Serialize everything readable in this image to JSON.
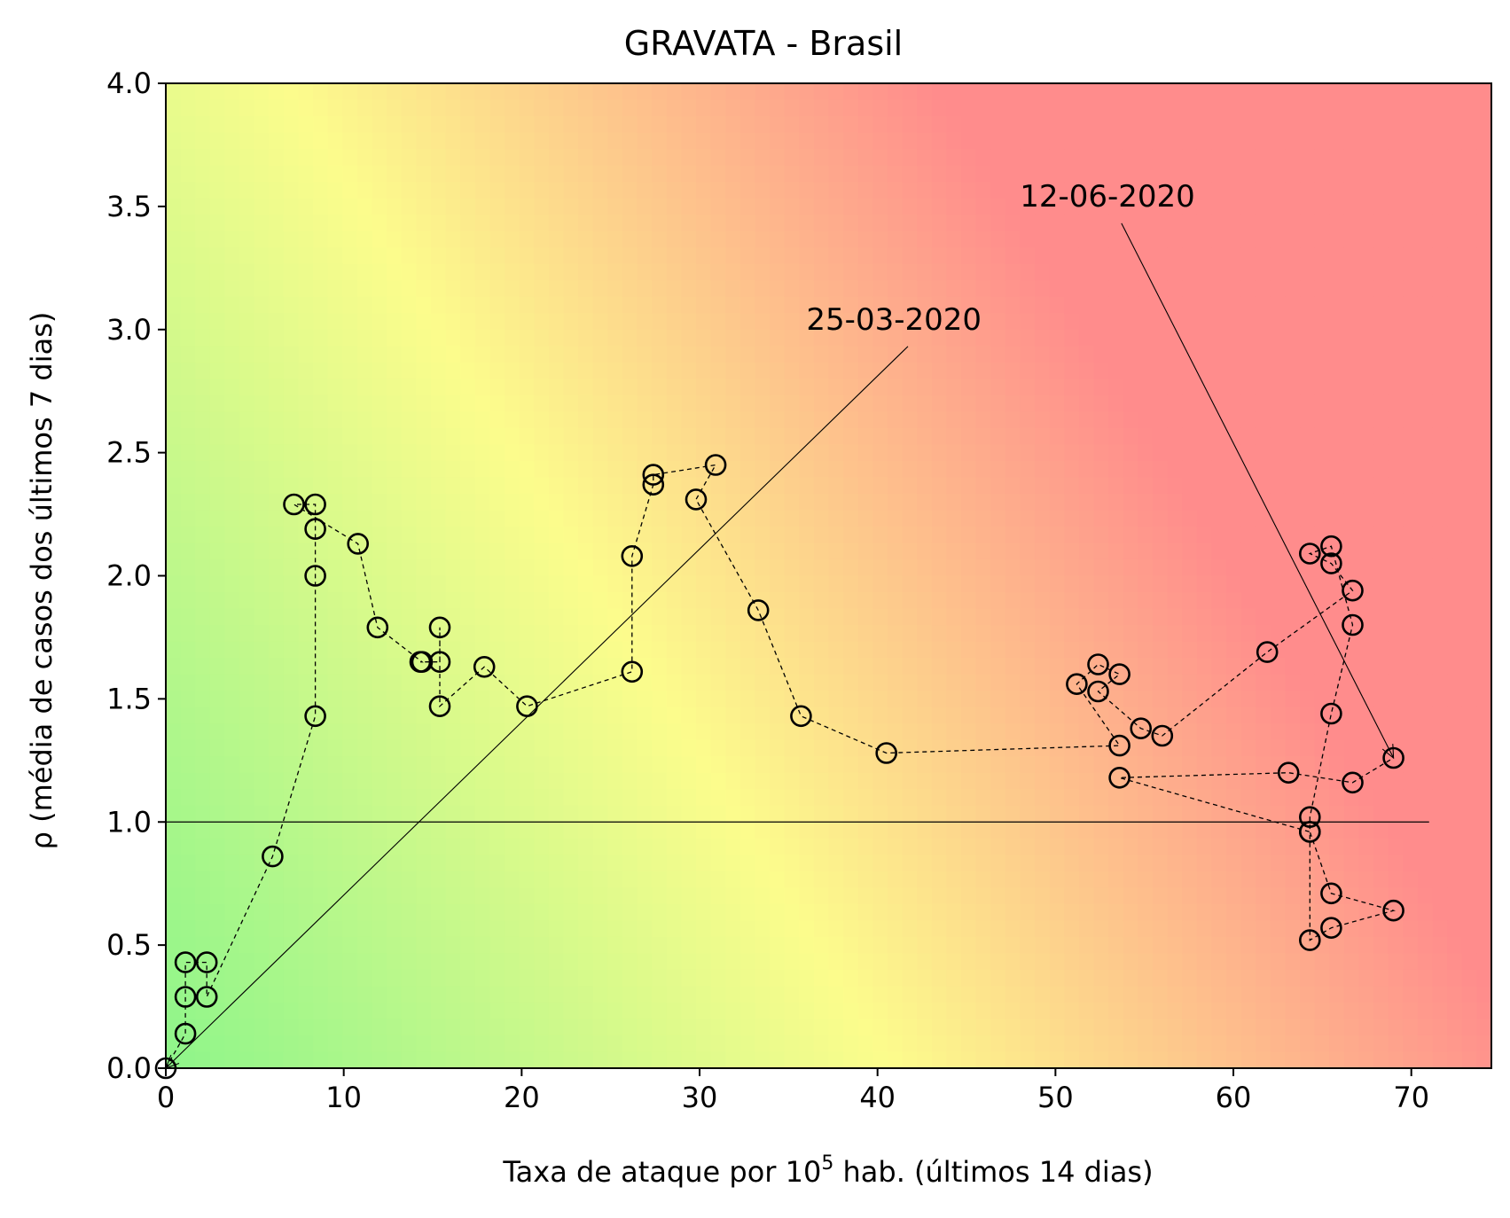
{
  "chart_data": {
    "type": "scatter",
    "title": "GRAVATA - Brasil",
    "xlabel_main": "Taxa de ataque por 10",
    "xlabel_sup": "5",
    "xlabel_rest": " hab. (últimos 14 dias)",
    "ylabel": "ρ (média de casos dos últimos 7 dias)",
    "xlim": [
      0,
      74.5
    ],
    "ylim": [
      0,
      4.0
    ],
    "xticks": [
      0,
      10,
      20,
      30,
      40,
      50,
      60,
      70
    ],
    "xtick_labels": [
      "0",
      "10",
      "20",
      "30",
      "40",
      "50",
      "60",
      "70"
    ],
    "yticks": [
      0,
      0.5,
      1.0,
      1.5,
      2.0,
      2.5,
      3.0,
      3.5,
      4.0
    ],
    "ytick_labels": [
      "0.0",
      "0.5",
      "1.0",
      "1.5",
      "2.0",
      "2.5",
      "3.0",
      "3.5",
      "4.0"
    ],
    "grid": false,
    "reference_line": {
      "y": 1.0,
      "x_range": [
        0,
        71
      ]
    },
    "background": "green-yellow-red risk gradient",
    "colors": {
      "low": "#8ef58a",
      "mid": "#fcfc8c",
      "high": "#ff8c8c",
      "line": "#000000"
    },
    "series": [
      {
        "points": [
          [
            0.0,
            0.0
          ],
          [
            1.1,
            0.14
          ],
          [
            1.1,
            0.29
          ],
          [
            1.1,
            0.43
          ],
          [
            2.3,
            0.43
          ],
          [
            2.3,
            0.29
          ],
          [
            6.0,
            0.86
          ],
          [
            8.4,
            1.43
          ],
          [
            8.4,
            2.0
          ],
          [
            8.4,
            2.19
          ],
          [
            8.4,
            2.29
          ],
          [
            7.2,
            2.29
          ],
          [
            10.8,
            2.13
          ],
          [
            11.9,
            1.79
          ],
          [
            14.4,
            1.65
          ],
          [
            14.3,
            1.65
          ],
          [
            15.4,
            1.65
          ],
          [
            15.4,
            1.79
          ],
          [
            15.4,
            1.47
          ],
          [
            17.9,
            1.63
          ],
          [
            20.3,
            1.47
          ],
          [
            26.2,
            1.61
          ],
          [
            26.2,
            2.08
          ],
          [
            27.4,
            2.37
          ],
          [
            27.4,
            2.41
          ],
          [
            30.9,
            2.45
          ],
          [
            29.8,
            2.31
          ],
          [
            33.3,
            1.86
          ],
          [
            35.7,
            1.43
          ],
          [
            40.5,
            1.28
          ],
          [
            53.6,
            1.31
          ],
          [
            51.2,
            1.56
          ],
          [
            52.4,
            1.64
          ],
          [
            53.6,
            1.6
          ],
          [
            52.4,
            1.53
          ],
          [
            54.8,
            1.38
          ],
          [
            56.0,
            1.35
          ],
          [
            61.9,
            1.69
          ],
          [
            66.7,
            1.94
          ],
          [
            65.5,
            2.05
          ],
          [
            64.3,
            2.09
          ],
          [
            65.5,
            2.12
          ],
          [
            66.7,
            1.8
          ],
          [
            65.5,
            1.44
          ],
          [
            64.3,
            1.02
          ],
          [
            64.3,
            0.96
          ],
          [
            65.5,
            0.71
          ],
          [
            69.0,
            0.64
          ],
          [
            65.5,
            0.57
          ],
          [
            64.3,
            0.52
          ],
          [
            64.3,
            0.96
          ],
          [
            53.6,
            1.18
          ],
          [
            63.1,
            1.2
          ],
          [
            66.7,
            1.16
          ],
          [
            69.0,
            1.26
          ]
        ]
      }
    ],
    "annotations": [
      {
        "text": "25-03-2020",
        "point": [
          0.0,
          0.0
        ],
        "label_at": [
          36.0,
          3.0
        ]
      },
      {
        "text": "12-06-2020",
        "point": [
          69.0,
          1.26
        ],
        "label_at": [
          48.0,
          3.5
        ]
      }
    ]
  }
}
